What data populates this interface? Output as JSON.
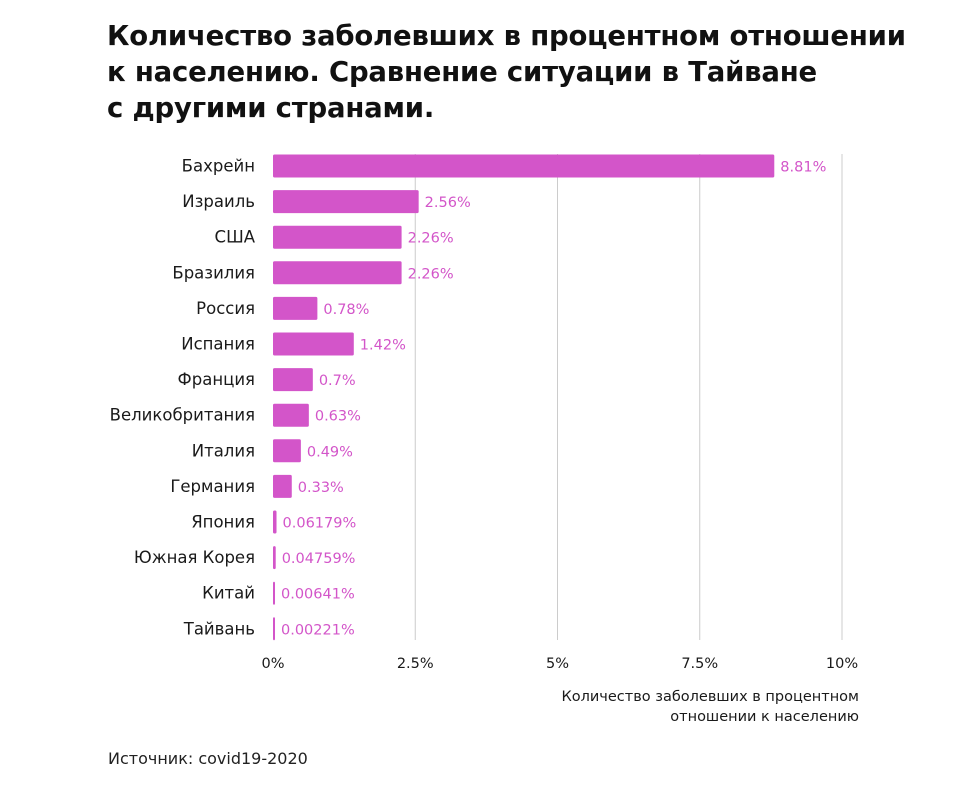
{
  "title_lines": [
    "Количество заболевших в процентном отношении",
    "к населению. Сравнение ситуации в Тайване",
    "с другими странами."
  ],
  "source": "Источник: covid19-2020",
  "colors": {
    "bar": "#d355c9",
    "value_label": "#d355c9",
    "grid": "#cccccc",
    "text": "#1a1a1a"
  },
  "chart_data": {
    "type": "bar",
    "orientation": "horizontal",
    "categories": [
      "Бахрейн",
      "Израиль",
      "США",
      "Бразилия",
      "Россия",
      "Испания",
      "Франция",
      "Великобритания",
      "Италия",
      "Германия",
      "Япония",
      "Южная Корея",
      "Китай",
      "Тайвань"
    ],
    "values": [
      8.81,
      2.56,
      2.26,
      2.26,
      0.78,
      1.42,
      0.7,
      0.63,
      0.49,
      0.33,
      0.06179,
      0.04759,
      0.00641,
      0.00221
    ],
    "value_labels": [
      "8.81%",
      "2.56%",
      "2.26%",
      "2.26%",
      "0.78%",
      "1.42%",
      "0.7%",
      "0.63%",
      "0.49%",
      "0.33%",
      "0.06179%",
      "0.04759%",
      "0.00641%",
      "0.00221%"
    ],
    "xticks": [
      0,
      2.5,
      5,
      7.5,
      10
    ],
    "xtick_labels": [
      "0%",
      "2.5%",
      "5%",
      "7.5%",
      "10%"
    ],
    "xlim": [
      0,
      10
    ],
    "xlabel_lines": [
      "Количество заболевших в процентном",
      "отношении к населению"
    ],
    "ylabel": "",
    "grid": true
  }
}
